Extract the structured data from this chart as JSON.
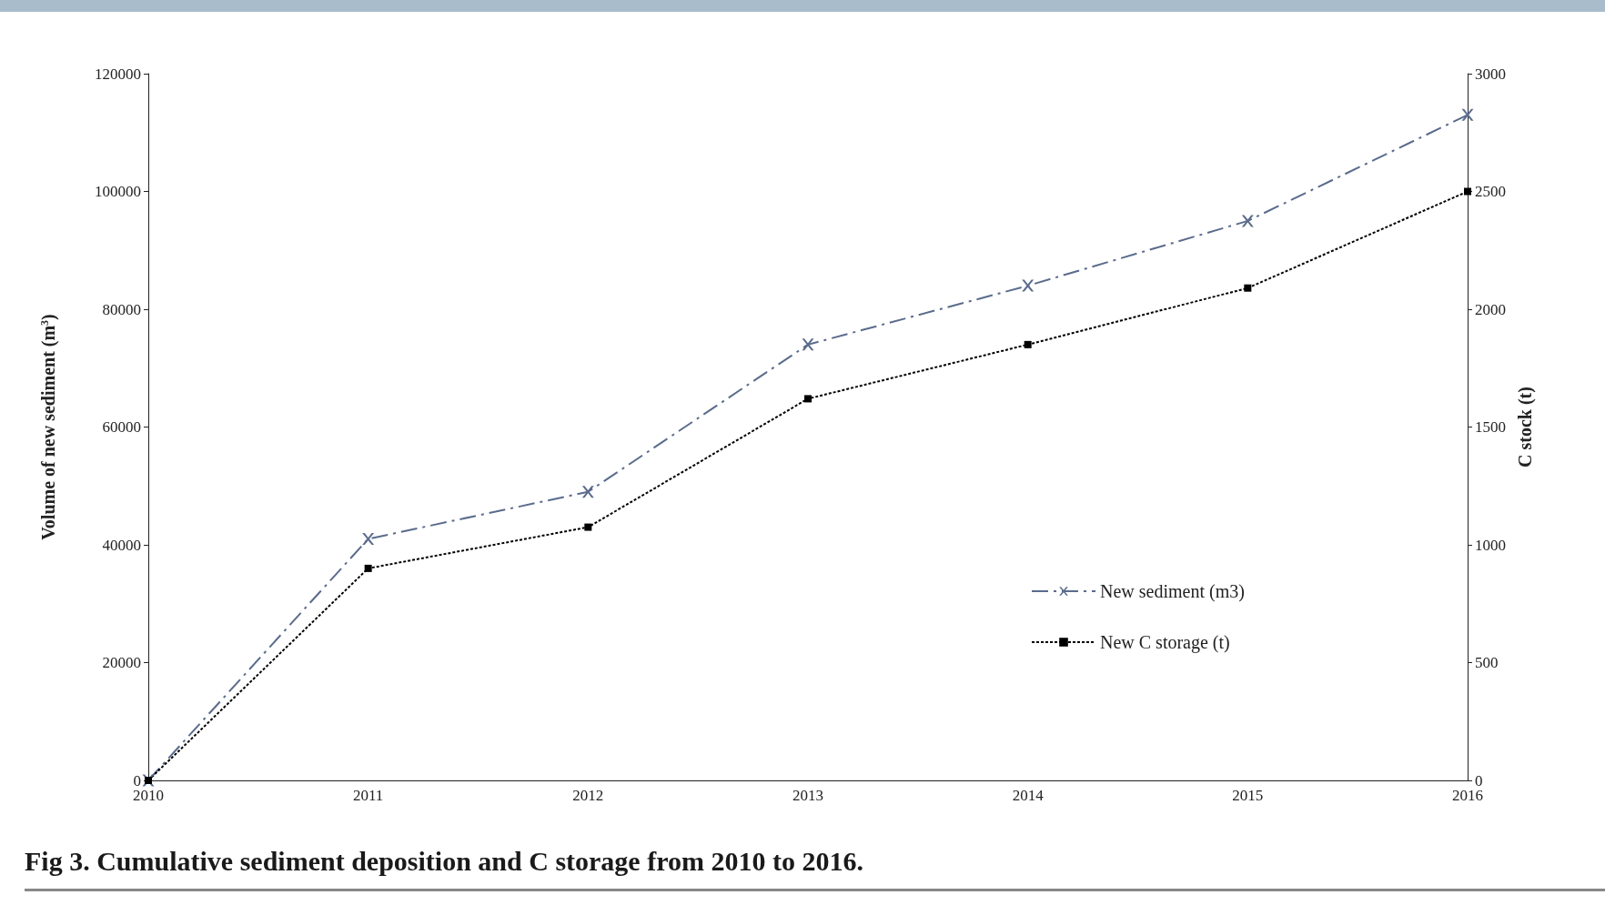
{
  "chart_data": {
    "type": "line",
    "title": "Fig 3. Cumulative sediment deposition and C storage from 2010 to 2016.",
    "categories": [
      "2010",
      "2011",
      "2012",
      "2013",
      "2014",
      "2015",
      "2016"
    ],
    "ylabel": "Volume of new sediment (m$^{3}$)",
    "y2label": "C stock (t)",
    "ylim": [
      0,
      120000
    ],
    "yticks": [
      0,
      20000,
      40000,
      60000,
      80000,
      100000,
      120000
    ],
    "y2lim": [
      0,
      3000
    ],
    "y2ticks": [
      0,
      500,
      1000,
      1500,
      2000,
      2500,
      3000
    ],
    "series": [
      {
        "name": "New sediment (m3)",
        "color": "#5a6b8c",
        "marker": "cross",
        "line_style": "dashed",
        "values": [
          0,
          41000,
          49000,
          74000,
          84000,
          95000,
          113000
        ]
      },
      {
        "name": "New C storage (t)",
        "color": "#000000",
        "marker": "square",
        "line_style": "dotted",
        "axis": "y2",
        "values": [
          0,
          900,
          1075,
          1620,
          1850,
          2090,
          2500
        ]
      }
    ],
    "grid": false,
    "legend": "bottom right"
  }
}
